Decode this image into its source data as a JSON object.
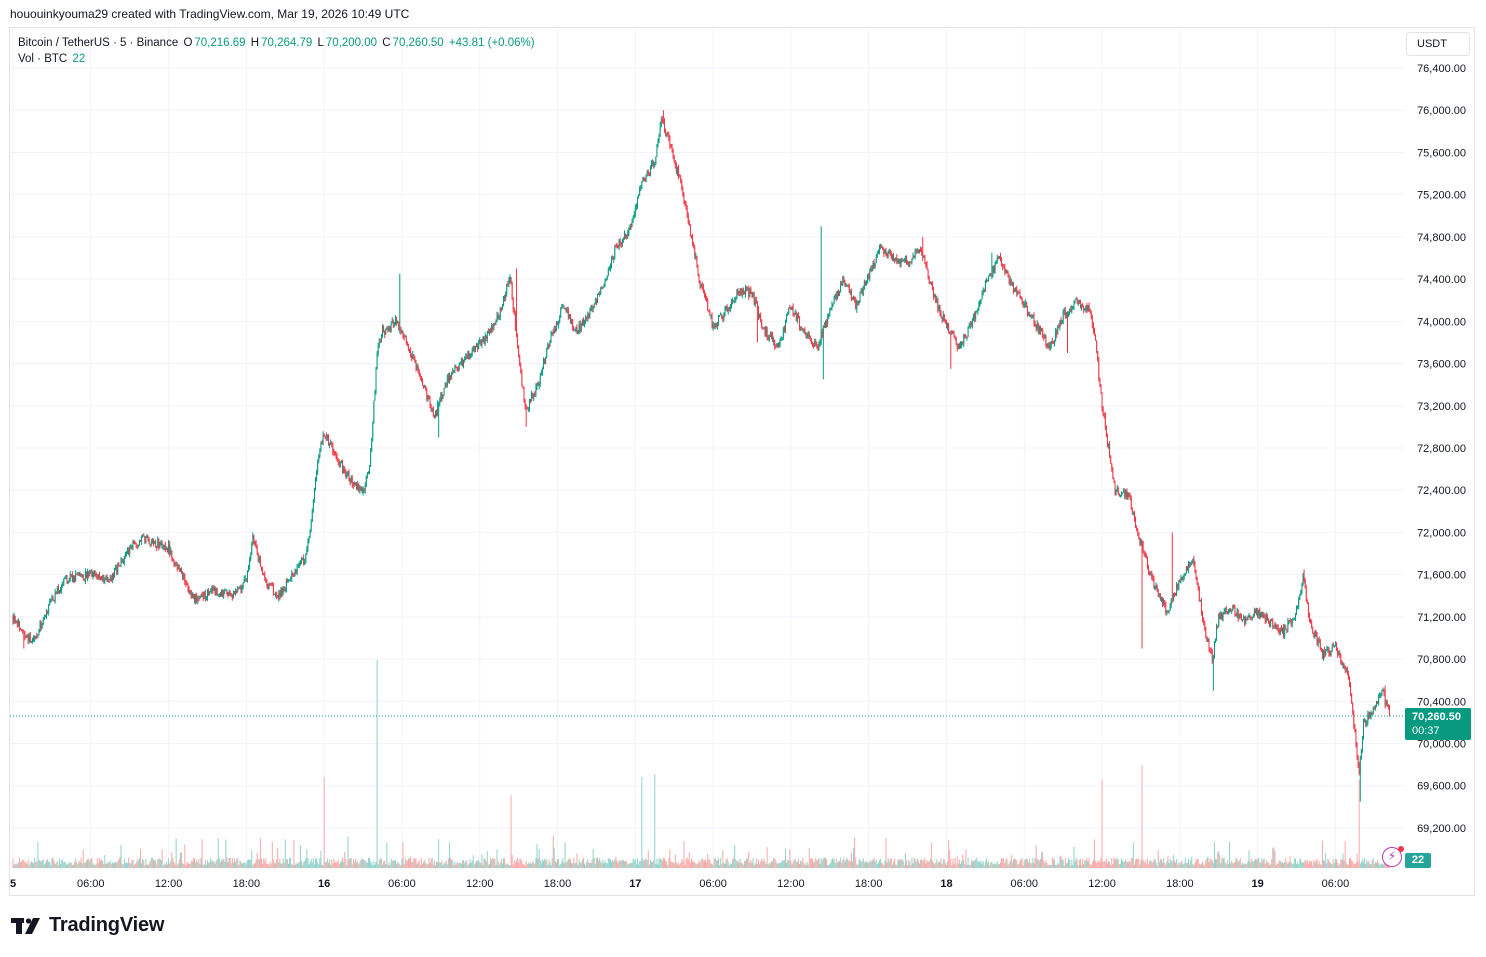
{
  "caption": "hououinkyouma29 created with TradingView.com, Mar 19, 2026 10:49 UTC",
  "legend": {
    "symbol": "Bitcoin / TetherUS · 5 · Binance",
    "open_label": "O",
    "open": "70,216.69",
    "high_label": "H",
    "high": "70,264.79",
    "low_label": "L",
    "low": "70,200.00",
    "close_label": "C",
    "close": "70,260.50",
    "change": "+43.81 (+0.06%)",
    "vol_label": "Vol · BTC",
    "vol_value": "22"
  },
  "currency_button": "USDT",
  "last_price_tag": {
    "price": "70,260.50",
    "countdown": "00:37"
  },
  "volume_tag": "22",
  "brand": "TradingView",
  "colors": {
    "up": "#089981",
    "down": "#f23645",
    "up_vol": "#8fd3c8",
    "down_vol": "#f7a9a7",
    "grid": "#f0f3fa"
  },
  "chart_data": {
    "type": "candlestick",
    "x_tick_labels": [
      "5",
      "06:00",
      "12:00",
      "18:00",
      "16",
      "06:00",
      "12:00",
      "18:00",
      "17",
      "06:00",
      "12:00",
      "18:00",
      "18",
      "06:00",
      "12:00",
      "18:00",
      "19",
      "06:00"
    ],
    "y_tick_labels": [
      "76,400.00",
      "76,000.00",
      "75,600.00",
      "75,200.00",
      "74,800.00",
      "74,400.00",
      "74,000.00",
      "73,600.00",
      "73,200.00",
      "72,800.00",
      "72,400.00",
      "72,000.00",
      "71,600.00",
      "71,200.00",
      "70,800.00",
      "70,400.00",
      "70,000.00",
      "69,600.00",
      "69,200.00"
    ],
    "y_range": [
      68800,
      76600
    ],
    "hours_range": [
      0,
      106.2
    ],
    "price_path_hours_vs_price": [
      [
        0,
        71200
      ],
      [
        1.5,
        70950
      ],
      [
        3,
        71350
      ],
      [
        4,
        71550
      ],
      [
        6,
        71600
      ],
      [
        7.5,
        71550
      ],
      [
        9,
        71850
      ],
      [
        10,
        71950
      ],
      [
        12,
        71850
      ],
      [
        13,
        71600
      ],
      [
        14,
        71350
      ],
      [
        15.5,
        71450
      ],
      [
        17,
        71400
      ],
      [
        18,
        71550
      ],
      [
        18.5,
        71950
      ],
      [
        19.5,
        71500
      ],
      [
        20.5,
        71400
      ],
      [
        21.5,
        71600
      ],
      [
        22.5,
        71750
      ],
      [
        23,
        72100
      ],
      [
        23.5,
        72650
      ],
      [
        24,
        72950
      ],
      [
        25,
        72700
      ],
      [
        26,
        72500
      ],
      [
        27,
        72400
      ],
      [
        27.5,
        72600
      ],
      [
        28.1,
        73700
      ],
      [
        28.5,
        73900
      ],
      [
        29.5,
        74000
      ],
      [
        30.5,
        73750
      ],
      [
        31.5,
        73450
      ],
      [
        32.5,
        73100
      ],
      [
        33.5,
        73450
      ],
      [
        34.5,
        73600
      ],
      [
        35.5,
        73750
      ],
      [
        36.5,
        73850
      ],
      [
        37.5,
        74050
      ],
      [
        38.3,
        74450
      ],
      [
        39,
        73700
      ],
      [
        39.5,
        73150
      ],
      [
        40.5,
        73400
      ],
      [
        41.5,
        73850
      ],
      [
        42.5,
        74150
      ],
      [
        43.5,
        73900
      ],
      [
        44.5,
        74100
      ],
      [
        45.5,
        74350
      ],
      [
        46.5,
        74700
      ],
      [
        47.5,
        74850
      ],
      [
        48.5,
        75300
      ],
      [
        49.5,
        75500
      ],
      [
        50,
        75900
      ],
      [
        50.5,
        75750
      ],
      [
        51.5,
        75300
      ],
      [
        52.5,
        74700
      ],
      [
        53,
        74350
      ],
      [
        54,
        73950
      ],
      [
        55,
        74100
      ],
      [
        56,
        74300
      ],
      [
        57,
        74250
      ],
      [
        58,
        73900
      ],
      [
        59,
        73750
      ],
      [
        60,
        74150
      ],
      [
        61,
        73900
      ],
      [
        62,
        73750
      ],
      [
        63,
        74100
      ],
      [
        64,
        74400
      ],
      [
        65,
        74150
      ],
      [
        66,
        74450
      ],
      [
        67,
        74700
      ],
      [
        68,
        74600
      ],
      [
        69,
        74550
      ],
      [
        70,
        74700
      ],
      [
        71,
        74250
      ],
      [
        72,
        73950
      ],
      [
        73,
        73750
      ],
      [
        74,
        74000
      ],
      [
        75,
        74350
      ],
      [
        76,
        74600
      ],
      [
        77,
        74350
      ],
      [
        78,
        74150
      ],
      [
        79,
        73950
      ],
      [
        80,
        73750
      ],
      [
        81,
        74050
      ],
      [
        82,
        74200
      ],
      [
        83,
        74100
      ],
      [
        83.5,
        73800
      ],
      [
        84,
        73200
      ],
      [
        84.5,
        72800
      ],
      [
        85,
        72400
      ],
      [
        86,
        72350
      ],
      [
        87,
        71900
      ],
      [
        88,
        71500
      ],
      [
        89,
        71250
      ],
      [
        90,
        71550
      ],
      [
        91,
        71750
      ],
      [
        92,
        71000
      ],
      [
        92.5,
        70800
      ],
      [
        93,
        71200
      ],
      [
        94,
        71300
      ],
      [
        95,
        71150
      ],
      [
        96,
        71250
      ],
      [
        97,
        71150
      ],
      [
        98,
        71050
      ],
      [
        99,
        71250
      ],
      [
        99.5,
        71600
      ],
      [
        100,
        71150
      ],
      [
        101,
        70850
      ],
      [
        102,
        70900
      ],
      [
        103,
        70650
      ],
      [
        103.5,
        70100
      ],
      [
        103.8,
        69700
      ],
      [
        104.2,
        70200
      ],
      [
        105,
        70300
      ],
      [
        105.6,
        70500
      ],
      [
        106.2,
        70260.5
      ]
    ],
    "spikes_hours_vs_extreme": [
      [
        0.8,
        70900
      ],
      [
        18.5,
        72000
      ],
      [
        27,
        72350
      ],
      [
        29.8,
        74450
      ],
      [
        32.8,
        72900
      ],
      [
        38.8,
        74500
      ],
      [
        39.6,
        73000
      ],
      [
        50.2,
        76000
      ],
      [
        57.4,
        73800
      ],
      [
        62.3,
        74900
      ],
      [
        62.5,
        73450
      ],
      [
        70.2,
        74800
      ],
      [
        72.3,
        73550
      ],
      [
        75.5,
        74650
      ],
      [
        81.3,
        73700
      ],
      [
        87.1,
        70900
      ],
      [
        89.4,
        72000
      ],
      [
        92.6,
        70500
      ],
      [
        99.6,
        71650
      ],
      [
        103.9,
        69450
      ],
      [
        105.8,
        70550
      ]
    ],
    "volume_spikes_hours_vs_btc": [
      [
        28.1,
        1600
      ],
      [
        24,
        700
      ],
      [
        38.4,
        560
      ],
      [
        48.5,
        700
      ],
      [
        49.5,
        720
      ],
      [
        84,
        680
      ],
      [
        87.1,
        790
      ],
      [
        103.8,
        680
      ]
    ],
    "last_price": 70260.5
  }
}
